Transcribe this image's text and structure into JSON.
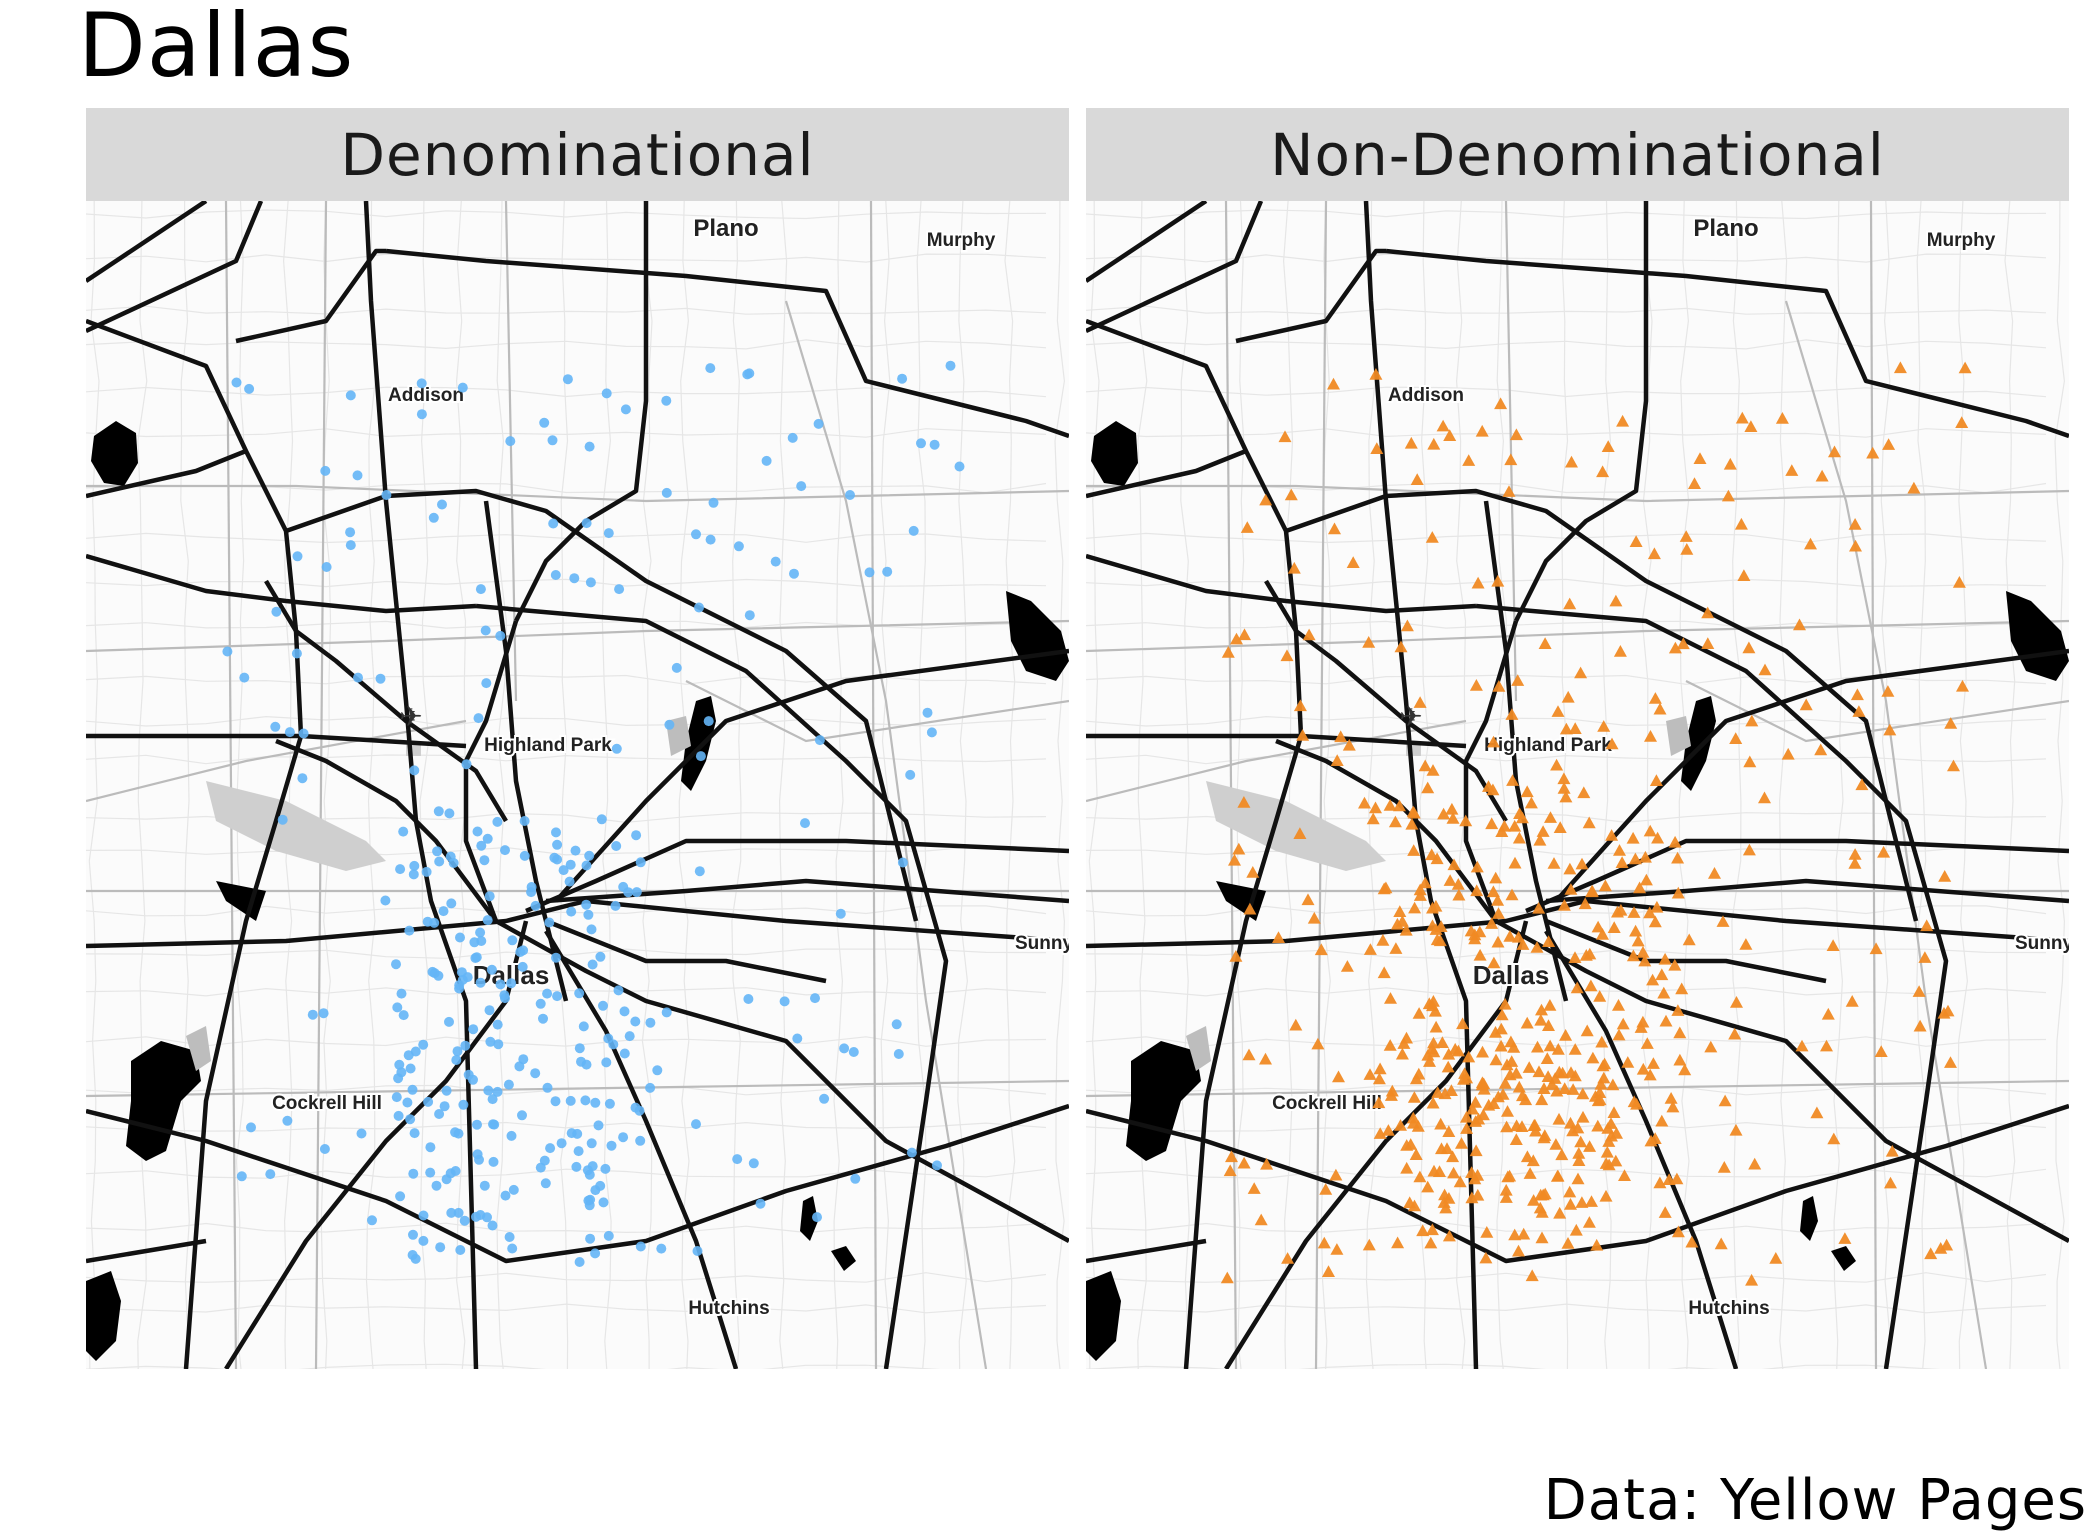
{
  "title": "Dallas",
  "caption": "Data: Yellow Pages",
  "colors": {
    "denominational": "#64b5f6",
    "non_denominational": "#f08a24",
    "strip": "#d9d9d9",
    "road": "#111111"
  },
  "panels": [
    {
      "label": "Denominational",
      "marker": "circle"
    },
    {
      "label": "Non-Denominational",
      "marker": "triangle"
    }
  ],
  "places": [
    {
      "name": "Plano",
      "major": true
    },
    {
      "name": "Murphy",
      "major": false
    },
    {
      "name": "Addison",
      "major": false
    },
    {
      "name": "Highland Park",
      "major": false
    },
    {
      "name": "Dallas",
      "major": true
    },
    {
      "name": "Sunny",
      "major": false
    },
    {
      "name": "Cockrell Hill",
      "major": false
    },
    {
      "name": "Hutchins",
      "major": false
    }
  ],
  "icons": {
    "airport": "airplane-icon"
  }
}
